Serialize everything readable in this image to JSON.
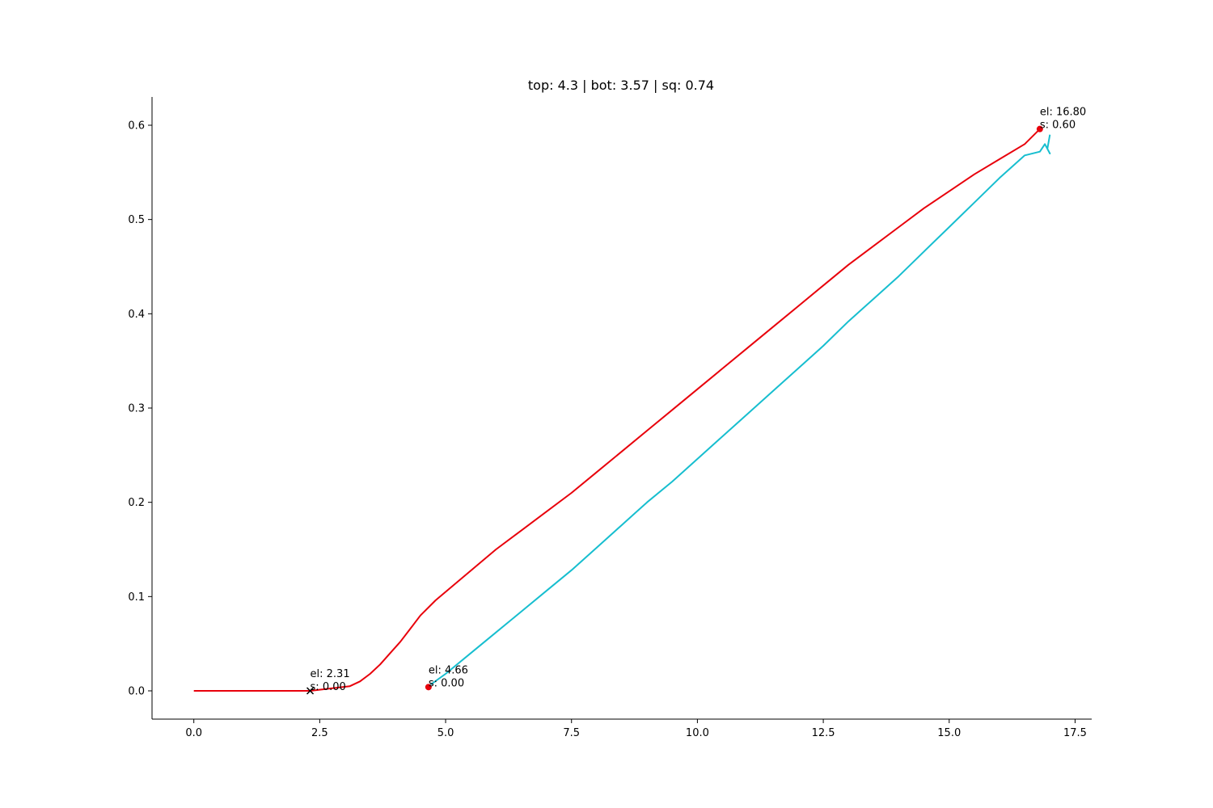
{
  "chart_data": {
    "type": "line",
    "title": "top: 4.3 | bot: 3.57 | sq: 0.74",
    "xlabel": "",
    "ylabel": "",
    "xlim": [
      -0.83,
      17.83
    ],
    "ylim": [
      -0.03,
      0.63
    ],
    "grid": false,
    "x_ticks": [
      0.0,
      2.5,
      5.0,
      7.5,
      10.0,
      12.5,
      15.0,
      17.5
    ],
    "x_tick_labels": [
      "0.0",
      "2.5",
      "5.0",
      "7.5",
      "10.0",
      "12.5",
      "15.0",
      "17.5"
    ],
    "y_ticks": [
      0.0,
      0.1,
      0.2,
      0.3,
      0.4,
      0.5,
      0.6
    ],
    "y_tick_labels": [
      "0.0",
      "0.1",
      "0.2",
      "0.3",
      "0.4",
      "0.5",
      "0.6"
    ],
    "series": [
      {
        "color": "#e8000b",
        "x": [
          0.0,
          2.31,
          3.1,
          3.3,
          3.5,
          3.7,
          3.9,
          4.1,
          4.3,
          4.5,
          4.8,
          5.2,
          5.6,
          6.0,
          6.5,
          7.0,
          7.5,
          8.0,
          8.5,
          9.0,
          9.5,
          10.0,
          10.5,
          11.0,
          11.5,
          12.0,
          12.5,
          13.0,
          13.5,
          14.0,
          14.5,
          15.0,
          15.5,
          16.0,
          16.5,
          16.8
        ],
        "y": [
          0.0,
          0.0,
          0.005,
          0.01,
          0.018,
          0.028,
          0.04,
          0.052,
          0.066,
          0.08,
          0.096,
          0.114,
          0.132,
          0.15,
          0.17,
          0.19,
          0.21,
          0.232,
          0.254,
          0.276,
          0.298,
          0.32,
          0.342,
          0.364,
          0.386,
          0.408,
          0.43,
          0.452,
          0.472,
          0.492,
          0.512,
          0.53,
          0.548,
          0.564,
          0.58,
          0.596
        ]
      },
      {
        "color": "#17becf",
        "x": [
          4.66,
          5.0,
          5.5,
          6.0,
          6.5,
          7.0,
          7.5,
          8.0,
          8.5,
          9.0,
          9.5,
          10.0,
          10.5,
          11.0,
          11.5,
          12.0,
          12.5,
          13.0,
          13.5,
          14.0,
          14.5,
          15.0,
          15.5,
          16.0,
          16.5,
          16.8,
          16.9,
          17.0,
          16.95,
          17.0
        ],
        "y": [
          0.005,
          0.018,
          0.04,
          0.062,
          0.084,
          0.106,
          0.128,
          0.152,
          0.176,
          0.2,
          0.222,
          0.246,
          0.27,
          0.294,
          0.318,
          0.342,
          0.366,
          0.392,
          0.416,
          0.44,
          0.466,
          0.492,
          0.518,
          0.544,
          0.568,
          0.572,
          0.58,
          0.57,
          0.575,
          0.59
        ]
      }
    ],
    "markers": [
      {
        "shape": "x",
        "color": "#000000",
        "x": 2.31,
        "y": 0.0
      },
      {
        "shape": "dot",
        "color": "#e8000b",
        "x": 4.66,
        "y": 0.004
      },
      {
        "shape": "dot",
        "color": "#e8000b",
        "x": 16.8,
        "y": 0.596
      }
    ],
    "annotations": [
      {
        "x": 2.31,
        "y": 0.0,
        "line1": "el: 2.31",
        "line2": "s: 0.00"
      },
      {
        "x": 4.66,
        "y": 0.004,
        "line1": "el: 4.66",
        "line2": "s: 0.00"
      },
      {
        "x": 16.8,
        "y": 0.596,
        "line1": "el: 16.80",
        "line2": "s: 0.60"
      }
    ]
  }
}
